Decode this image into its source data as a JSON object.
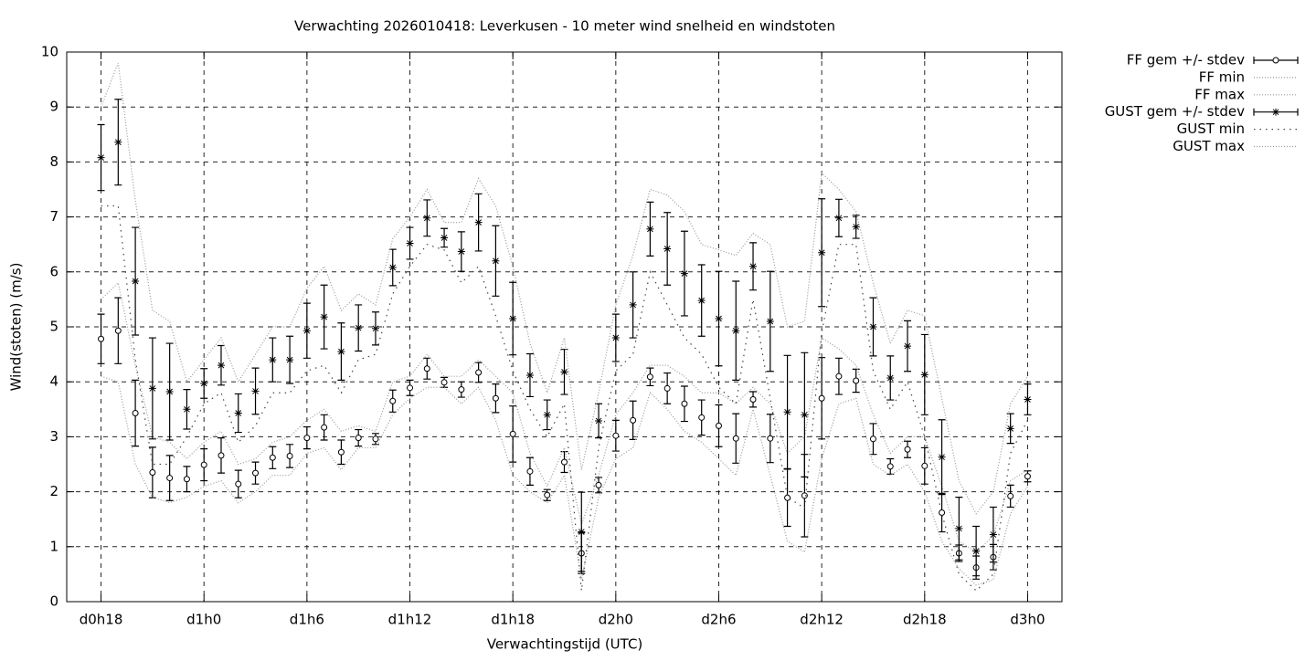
{
  "chart_data": {
    "type": "line",
    "title": "Verwachting 2026010418: Leverkusen - 10 meter wind snelheid en windstoten",
    "x_label": "Verwachtingstijd (UTC)",
    "y_label": "Wind(stoten) (m/s)",
    "x": [
      18,
      19,
      20,
      21,
      22,
      23,
      24,
      25,
      26,
      27,
      28,
      29,
      30,
      31,
      32,
      33,
      34,
      35,
      36,
      37,
      38,
      39,
      40,
      41,
      42,
      43,
      44,
      45,
      46,
      47,
      48,
      49,
      50,
      51,
      52,
      53,
      54,
      55,
      56,
      57,
      58,
      59,
      60,
      61,
      62,
      63,
      64,
      65,
      66,
      67,
      68,
      69,
      70,
      71,
      72
    ],
    "xlim": [
      16,
      74
    ],
    "xticks": [
      {
        "value": 18,
        "label": "d0h18"
      },
      {
        "value": 24,
        "label": "d1h0"
      },
      {
        "value": 30,
        "label": "d1h6"
      },
      {
        "value": 36,
        "label": "d1h12"
      },
      {
        "value": 42,
        "label": "d1h18"
      },
      {
        "value": 48,
        "label": "d2h0"
      },
      {
        "value": 54,
        "label": "d2h6"
      },
      {
        "value": 60,
        "label": "d2h12"
      },
      {
        "value": 66,
        "label": "d2h18"
      },
      {
        "value": 72,
        "label": "d3h0"
      }
    ],
    "ylim": [
      0,
      10
    ],
    "yticks": [
      0,
      1,
      2,
      3,
      4,
      5,
      6,
      7,
      8,
      9,
      10
    ],
    "grid": true,
    "legend": "outside-right",
    "series": [
      {
        "name": "FF gem +/- stdev",
        "color": "#000000",
        "marker": "circle",
        "line_style": "none",
        "values": [
          4.78,
          4.93,
          3.43,
          2.35,
          2.25,
          2.23,
          2.49,
          2.66,
          2.14,
          2.34,
          2.62,
          2.65,
          2.98,
          3.17,
          2.72,
          2.98,
          2.96,
          3.65,
          3.89,
          4.24,
          3.99,
          3.86,
          4.17,
          3.7,
          3.05,
          2.37,
          1.94,
          2.54,
          0.88,
          2.12,
          3.02,
          3.3,
          4.09,
          3.88,
          3.6,
          3.35,
          3.2,
          2.97,
          3.68,
          2.97,
          1.89,
          1.93,
          3.7,
          4.1,
          4.02,
          2.96,
          2.46,
          2.77,
          2.47,
          1.62,
          0.88,
          0.62,
          0.81,
          1.92,
          2.28
        ],
        "errors": [
          0.45,
          0.6,
          0.6,
          0.46,
          0.41,
          0.23,
          0.29,
          0.32,
          0.25,
          0.2,
          0.2,
          0.21,
          0.2,
          0.23,
          0.22,
          0.15,
          0.1,
          0.2,
          0.14,
          0.19,
          0.09,
          0.14,
          0.18,
          0.26,
          0.51,
          0.25,
          0.1,
          0.19,
          0.37,
          0.14,
          0.28,
          0.35,
          0.16,
          0.28,
          0.32,
          0.32,
          0.38,
          0.45,
          0.14,
          0.44,
          0.52,
          0.75,
          0.74,
          0.33,
          0.21,
          0.28,
          0.14,
          0.15,
          0.33,
          0.35,
          0.15,
          0.21,
          0.23,
          0.2,
          0.1
        ]
      },
      {
        "name": "FF min",
        "color": "#999999",
        "line_style": "dotted",
        "values": [
          4.1,
          4.0,
          2.5,
          1.9,
          1.8,
          1.9,
          2.1,
          2.2,
          1.8,
          2.0,
          2.3,
          2.3,
          2.7,
          2.8,
          2.4,
          2.8,
          2.8,
          3.4,
          3.7,
          3.9,
          3.9,
          3.6,
          3.9,
          3.3,
          2.3,
          2.0,
          1.8,
          2.3,
          0.4,
          1.9,
          2.6,
          2.8,
          3.8,
          3.5,
          3.1,
          2.9,
          2.6,
          2.3,
          3.5,
          2.3,
          1.1,
          0.9,
          2.6,
          3.6,
          3.7,
          2.5,
          2.3,
          2.5,
          2.0,
          1.1,
          0.6,
          0.3,
          0.4,
          1.6,
          2.1
        ]
      },
      {
        "name": "FF max",
        "color": "#999999",
        "line_style": "dotted",
        "values": [
          5.5,
          5.8,
          4.3,
          3.0,
          2.9,
          2.6,
          2.9,
          3.1,
          2.5,
          2.6,
          2.9,
          3.0,
          3.3,
          3.5,
          3.1,
          3.2,
          3.1,
          4.0,
          4.1,
          4.5,
          4.1,
          4.1,
          4.4,
          4.1,
          3.8,
          2.7,
          2.1,
          2.8,
          1.4,
          2.3,
          3.4,
          3.8,
          4.3,
          4.3,
          4.1,
          3.8,
          3.8,
          3.6,
          3.9,
          3.6,
          2.7,
          3.0,
          4.8,
          4.6,
          4.3,
          3.4,
          2.7,
          3.0,
          3.0,
          2.1,
          1.1,
          0.9,
          1.2,
          2.2,
          2.4
        ]
      },
      {
        "name": "GUST gem +/- stdev",
        "color": "#000000",
        "marker": "star",
        "line_style": "none",
        "values": [
          8.08,
          8.36,
          5.83,
          3.88,
          3.82,
          3.5,
          3.97,
          4.3,
          3.43,
          3.83,
          4.4,
          4.4,
          4.93,
          5.18,
          4.55,
          4.98,
          4.97,
          6.08,
          6.52,
          6.98,
          6.62,
          6.37,
          6.9,
          6.2,
          5.15,
          4.12,
          3.4,
          4.18,
          1.27,
          3.29,
          4.8,
          5.4,
          6.78,
          6.42,
          5.97,
          5.48,
          5.15,
          4.93,
          6.1,
          5.1,
          3.45,
          3.4,
          6.35,
          6.98,
          6.82,
          5.0,
          4.07,
          4.65,
          4.13,
          2.63,
          1.33,
          0.92,
          1.22,
          3.15,
          3.68
        ],
        "errors": [
          0.6,
          0.78,
          0.98,
          0.92,
          0.88,
          0.36,
          0.27,
          0.36,
          0.35,
          0.42,
          0.4,
          0.43,
          0.5,
          0.58,
          0.52,
          0.42,
          0.3,
          0.33,
          0.29,
          0.33,
          0.17,
          0.36,
          0.52,
          0.64,
          0.66,
          0.39,
          0.27,
          0.41,
          0.72,
          0.31,
          0.43,
          0.6,
          0.49,
          0.66,
          0.77,
          0.65,
          0.86,
          0.9,
          0.43,
          0.91,
          1.03,
          1.13,
          0.98,
          0.34,
          0.21,
          0.53,
          0.4,
          0.46,
          0.73,
          0.68,
          0.57,
          0.45,
          0.5,
          0.27,
          0.28
        ]
      },
      {
        "name": "GUST min",
        "color": "#444444",
        "line_style": "sparse",
        "values": [
          7.2,
          7.2,
          4.4,
          2.5,
          2.5,
          3.0,
          3.6,
          3.8,
          2.9,
          3.2,
          3.8,
          3.8,
          4.2,
          4.3,
          3.8,
          4.4,
          4.5,
          5.6,
          6.1,
          6.5,
          6.4,
          5.8,
          6.1,
          5.2,
          4.2,
          3.5,
          3.0,
          3.6,
          0.2,
          2.8,
          4.2,
          4.5,
          6.0,
          5.4,
          4.8,
          4.5,
          3.9,
          3.6,
          5.5,
          3.7,
          1.9,
          1.7,
          4.9,
          6.5,
          6.5,
          4.2,
          3.5,
          4.0,
          3.0,
          1.6,
          0.5,
          0.2,
          0.5,
          2.7,
          3.3
        ]
      },
      {
        "name": "GUST max",
        "color": "#999999",
        "line_style": "dotted",
        "values": [
          9.0,
          9.8,
          7.3,
          5.3,
          5.1,
          4.0,
          4.4,
          4.8,
          4.0,
          4.5,
          5.0,
          5.0,
          5.7,
          6.1,
          5.3,
          5.6,
          5.4,
          6.6,
          7.0,
          7.5,
          6.9,
          6.9,
          7.7,
          7.2,
          6.1,
          4.7,
          3.8,
          4.8,
          2.4,
          3.8,
          5.4,
          6.3,
          7.5,
          7.4,
          7.1,
          6.5,
          6.4,
          6.3,
          6.7,
          6.5,
          5.0,
          5.1,
          7.8,
          7.5,
          7.1,
          5.8,
          4.7,
          5.3,
          5.2,
          3.7,
          2.2,
          1.6,
          2.0,
          3.6,
          4.1
        ]
      }
    ]
  }
}
